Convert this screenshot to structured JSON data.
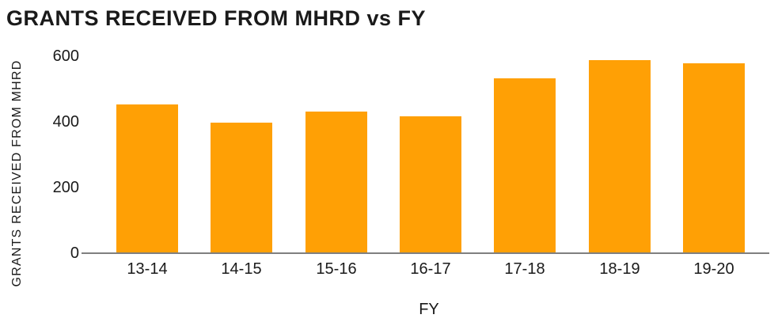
{
  "chart_data": {
    "type": "bar",
    "title": "GRANTS RECEIVED FROM MHRD vs FY",
    "xlabel": "FY",
    "ylabel": "GRANTS RECEIVED FROM MHRD",
    "categories": [
      "13-14",
      "14-15",
      "15-16",
      "16-17",
      "17-18",
      "18-19",
      "19-20"
    ],
    "values": [
      450,
      395,
      430,
      415,
      530,
      585,
      575
    ],
    "yticks": [
      0,
      200,
      400,
      600
    ],
    "ylim": [
      0,
      600
    ],
    "grid": false,
    "legend": false,
    "colors": {
      "bar": "#FFA005",
      "axis_line": "#7F7F7F",
      "text": "#1A1A1A",
      "background": "#FFFFFF"
    }
  }
}
